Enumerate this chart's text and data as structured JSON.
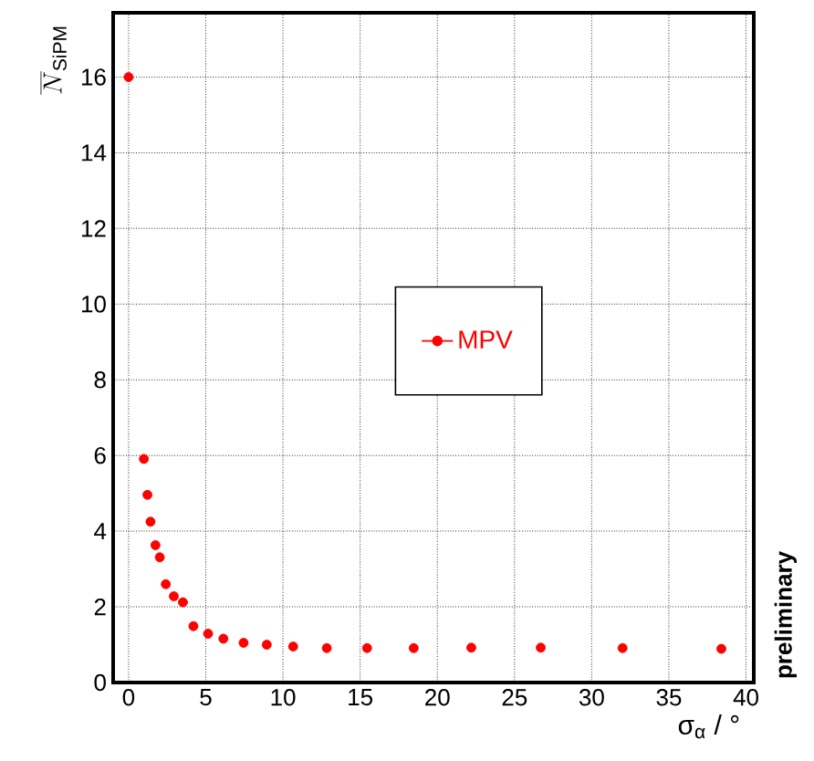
{
  "chart_data": {
    "type": "scatter",
    "xlabel": "σ$_{α}$ / °",
    "ylabel": "\\overline{N}_{\\mathrm{SiPM}}",
    "xlim": [
      -1,
      40.5
    ],
    "ylim": [
      0,
      17.7
    ],
    "xticks": [
      0,
      5,
      10,
      15,
      20,
      25,
      30,
      35,
      40
    ],
    "yticks": [
      0,
      2,
      4,
      6,
      8,
      10,
      12,
      14,
      16
    ],
    "grid": true,
    "legend": "center",
    "marker": "circle",
    "annotations": [
      "preliminary"
    ],
    "series": [
      {
        "name": "MPV",
        "color": "#ff0000",
        "x": [
          0,
          0.99,
          1.22,
          1.42,
          1.74,
          2.02,
          2.41,
          2.93,
          3.52,
          4.2,
          5.15,
          6.14,
          7.45,
          8.95,
          10.66,
          12.84,
          15.45,
          18.47,
          22.2,
          26.7,
          32.0,
          38.4
        ],
        "values": [
          16,
          5.91,
          4.96,
          4.25,
          3.63,
          3.31,
          2.6,
          2.28,
          2.12,
          1.49,
          1.29,
          1.16,
          1.05,
          1.0,
          0.95,
          0.91,
          0.91,
          0.91,
          0.92,
          0.92,
          0.91,
          0.89
        ]
      }
    ]
  }
}
